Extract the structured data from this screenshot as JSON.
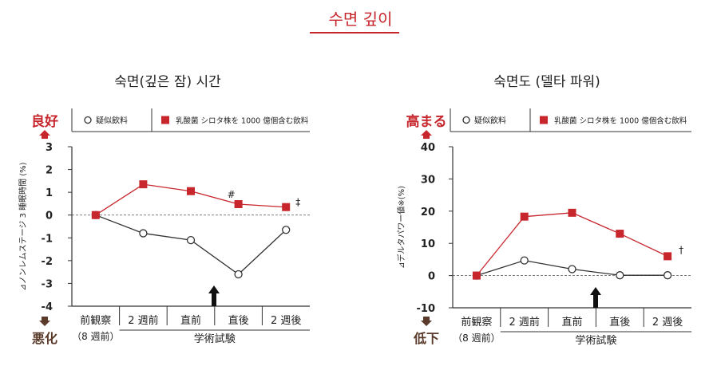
{
  "header": {
    "title": "수면 깊이"
  },
  "colors": {
    "accent": "#c8262d",
    "placebo": "#333333",
    "arrow_up": "#c8262d",
    "arrow_down": "#5a3a2a"
  },
  "chart_data": [
    {
      "type": "line",
      "title": "숙면(깊은 잠) 시간",
      "ylabel": "⊿ノンレムステージ 3 睡眠時間 (%)",
      "ylim": [
        -4,
        3
      ],
      "yticks": [
        "3",
        "2",
        "1",
        "0",
        "-1",
        "-2",
        "-3",
        "-4"
      ],
      "ytick_values": [
        3,
        2,
        1,
        0,
        -1,
        -2,
        -3,
        -4
      ],
      "categories": [
        "前観察",
        "2 週前",
        "直前",
        "直後",
        "2 週後"
      ],
      "category_sub": "（8 週前）",
      "xgroup_label": "学術試験",
      "good_label": "良好",
      "bad_label": "悪化",
      "legend": [
        "疑似飲料",
        "乳酸菌 シロタ株を 1000 億個含む飲料"
      ],
      "series": [
        {
          "name": "疑似飲料",
          "values": [
            0,
            -0.8,
            -1.1,
            -2.6,
            -0.65
          ]
        },
        {
          "name": "乳酸菌 シロタ株を 1000 億個含む飲料",
          "values": [
            0,
            1.35,
            1.05,
            0.48,
            0.35
          ]
        }
      ],
      "annotations": [
        "#",
        "‡"
      ]
    },
    {
      "type": "line",
      "title": "숙면도 (델타 파워)",
      "ylabel": "⊿デルタパワー値※(%)",
      "ylim": [
        -10,
        40
      ],
      "yticks": [
        "40",
        "30",
        "20",
        "10",
        "0",
        "-10"
      ],
      "ytick_values": [
        40,
        30,
        20,
        10,
        0,
        -10
      ],
      "categories": [
        "前観察",
        "2 週前",
        "直前",
        "直後",
        "2 週後"
      ],
      "category_sub": "（8 週前）",
      "xgroup_label": "学術試験",
      "good_label": "高まる",
      "bad_label": "低下",
      "legend": [
        "疑似飲料",
        "乳酸菌 シロタ株を 1000 億個含む飲料"
      ],
      "series": [
        {
          "name": "疑似飲料",
          "values": [
            0,
            4.7,
            2.0,
            0.1,
            0.1
          ]
        },
        {
          "name": "乳酸菌 シロタ株を 1000 億個含む飲料",
          "values": [
            0,
            18.3,
            19.5,
            13.0,
            6.0
          ]
        }
      ],
      "annotations": [
        "†"
      ]
    }
  ]
}
